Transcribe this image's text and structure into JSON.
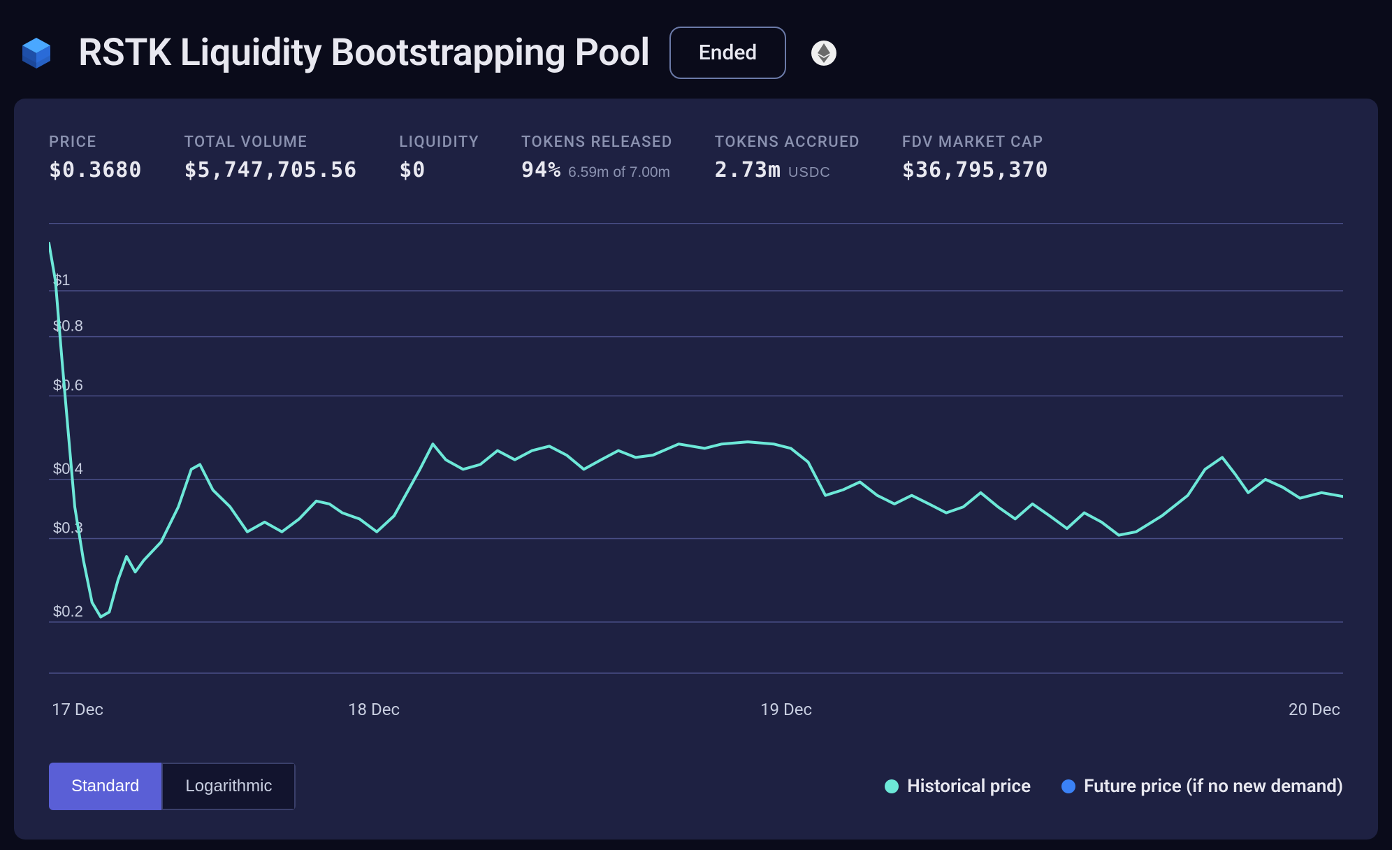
{
  "header": {
    "title": "RSTK Liquidity Bootstrapping Pool",
    "status": "Ended",
    "logo_colors": {
      "top": "#4aa8ff",
      "side": "#2a6bd8"
    },
    "network_icon_bg": "#f0f0f0",
    "network_icon_fg": "#6b6b6b"
  },
  "stats": {
    "price": {
      "label": "PRICE",
      "value": "$0.3680"
    },
    "volume": {
      "label": "TOTAL VOLUME",
      "value": "$5,747,705.56"
    },
    "liquidity": {
      "label": "LIQUIDITY",
      "value": "$0"
    },
    "released": {
      "label": "TOKENS RELEASED",
      "value": "94%",
      "secondary": "6.59m of 7.00m"
    },
    "accrued": {
      "label": "TOKENS ACCRUED",
      "value": "2.73m",
      "unit": "USDC"
    },
    "fdv": {
      "label": "FDV MARKET CAP",
      "value": "$36,795,370"
    }
  },
  "chart": {
    "type": "line",
    "scale": "log",
    "grid_color": "#4a4f88",
    "line_color": "#6de8d8",
    "line_width": 4,
    "background": "#1e2142",
    "y_ticks": [
      {
        "v": 0.2,
        "label": "$0.2"
      },
      {
        "v": 0.3,
        "label": "$0.3"
      },
      {
        "v": 0.4,
        "label": "$0.4"
      },
      {
        "v": 0.6,
        "label": "$0.6"
      },
      {
        "v": 0.8,
        "label": "$0.8"
      },
      {
        "v": 1.0,
        "label": "$1"
      }
    ],
    "y_log_min": 0.156,
    "y_log_max": 1.39,
    "x_ticks": [
      "17 Dec",
      "18 Dec",
      "19 Dec",
      "20 Dec"
    ],
    "x_min": 0,
    "x_max": 3,
    "series": [
      {
        "x": 0.0,
        "y": 1.26
      },
      {
        "x": 0.015,
        "y": 1.05
      },
      {
        "x": 0.03,
        "y": 0.72
      },
      {
        "x": 0.045,
        "y": 0.5
      },
      {
        "x": 0.06,
        "y": 0.35
      },
      {
        "x": 0.08,
        "y": 0.27
      },
      {
        "x": 0.1,
        "y": 0.22
      },
      {
        "x": 0.12,
        "y": 0.205
      },
      {
        "x": 0.14,
        "y": 0.21
      },
      {
        "x": 0.16,
        "y": 0.245
      },
      {
        "x": 0.18,
        "y": 0.275
      },
      {
        "x": 0.2,
        "y": 0.255
      },
      {
        "x": 0.22,
        "y": 0.27
      },
      {
        "x": 0.26,
        "y": 0.295
      },
      {
        "x": 0.3,
        "y": 0.35
      },
      {
        "x": 0.33,
        "y": 0.42
      },
      {
        "x": 0.35,
        "y": 0.43
      },
      {
        "x": 0.38,
        "y": 0.38
      },
      {
        "x": 0.42,
        "y": 0.35
      },
      {
        "x": 0.46,
        "y": 0.31
      },
      {
        "x": 0.5,
        "y": 0.325
      },
      {
        "x": 0.54,
        "y": 0.31
      },
      {
        "x": 0.58,
        "y": 0.33
      },
      {
        "x": 0.62,
        "y": 0.36
      },
      {
        "x": 0.65,
        "y": 0.355
      },
      {
        "x": 0.68,
        "y": 0.34
      },
      {
        "x": 0.72,
        "y": 0.33
      },
      {
        "x": 0.76,
        "y": 0.31
      },
      {
        "x": 0.8,
        "y": 0.335
      },
      {
        "x": 0.86,
        "y": 0.42
      },
      {
        "x": 0.89,
        "y": 0.475
      },
      {
        "x": 0.92,
        "y": 0.44
      },
      {
        "x": 0.96,
        "y": 0.42
      },
      {
        "x": 1.0,
        "y": 0.43
      },
      {
        "x": 1.04,
        "y": 0.46
      },
      {
        "x": 1.08,
        "y": 0.44
      },
      {
        "x": 1.12,
        "y": 0.46
      },
      {
        "x": 1.16,
        "y": 0.47
      },
      {
        "x": 1.2,
        "y": 0.45
      },
      {
        "x": 1.24,
        "y": 0.42
      },
      {
        "x": 1.28,
        "y": 0.44
      },
      {
        "x": 1.32,
        "y": 0.46
      },
      {
        "x": 1.36,
        "y": 0.445
      },
      {
        "x": 1.4,
        "y": 0.45
      },
      {
        "x": 1.46,
        "y": 0.475
      },
      {
        "x": 1.52,
        "y": 0.465
      },
      {
        "x": 1.56,
        "y": 0.475
      },
      {
        "x": 1.62,
        "y": 0.48
      },
      {
        "x": 1.68,
        "y": 0.475
      },
      {
        "x": 1.72,
        "y": 0.465
      },
      {
        "x": 1.76,
        "y": 0.435
      },
      {
        "x": 1.8,
        "y": 0.37
      },
      {
        "x": 1.84,
        "y": 0.38
      },
      {
        "x": 1.88,
        "y": 0.395
      },
      {
        "x": 1.92,
        "y": 0.37
      },
      {
        "x": 1.96,
        "y": 0.355
      },
      {
        "x": 2.0,
        "y": 0.37
      },
      {
        "x": 2.04,
        "y": 0.355
      },
      {
        "x": 2.08,
        "y": 0.34
      },
      {
        "x": 2.12,
        "y": 0.35
      },
      {
        "x": 2.16,
        "y": 0.375
      },
      {
        "x": 2.2,
        "y": 0.35
      },
      {
        "x": 2.24,
        "y": 0.33
      },
      {
        "x": 2.28,
        "y": 0.355
      },
      {
        "x": 2.32,
        "y": 0.335
      },
      {
        "x": 2.36,
        "y": 0.315
      },
      {
        "x": 2.4,
        "y": 0.34
      },
      {
        "x": 2.44,
        "y": 0.325
      },
      {
        "x": 2.48,
        "y": 0.305
      },
      {
        "x": 2.52,
        "y": 0.31
      },
      {
        "x": 2.58,
        "y": 0.335
      },
      {
        "x": 2.64,
        "y": 0.37
      },
      {
        "x": 2.68,
        "y": 0.42
      },
      {
        "x": 2.72,
        "y": 0.445
      },
      {
        "x": 2.75,
        "y": 0.41
      },
      {
        "x": 2.78,
        "y": 0.375
      },
      {
        "x": 2.82,
        "y": 0.4
      },
      {
        "x": 2.86,
        "y": 0.385
      },
      {
        "x": 2.9,
        "y": 0.365
      },
      {
        "x": 2.95,
        "y": 0.375
      },
      {
        "x": 3.0,
        "y": 0.368
      }
    ]
  },
  "controls": {
    "standard": "Standard",
    "logarithmic": "Logarithmic",
    "active": "standard"
  },
  "legend": {
    "historical": {
      "label": "Historical price",
      "color": "#6de8d8"
    },
    "future": {
      "label": "Future price (if no new demand)",
      "color": "#3b82f6"
    }
  }
}
